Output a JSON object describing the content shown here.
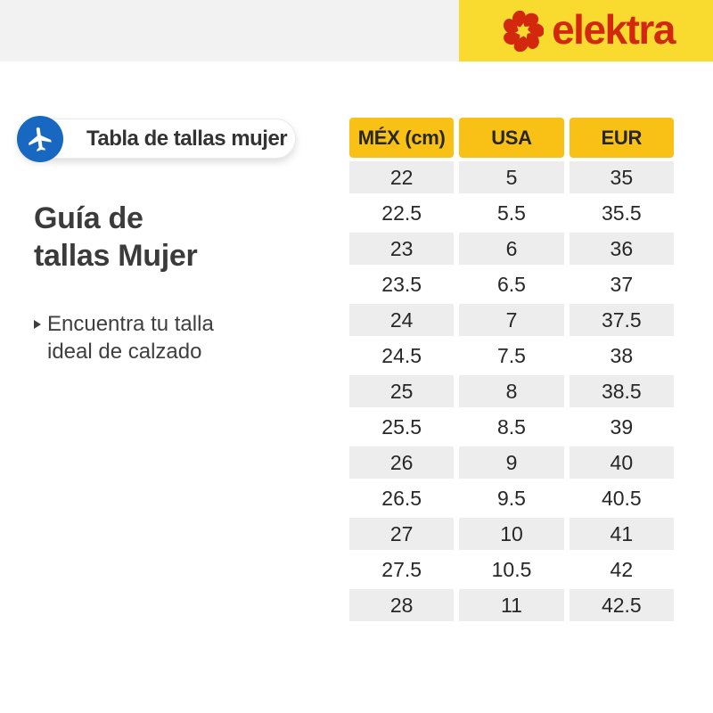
{
  "colors": {
    "bar-gray": "#F2F2F2",
    "bar-yellow": "#F8DB2E",
    "brand-red": "#D2290E",
    "circle-blue": "#1867C0",
    "header-yellow": "#F9C116",
    "row-gray": "#EDEDED",
    "title-gray": "#3B3B3B"
  },
  "header": {
    "brand": "elektra",
    "logo_icon": "elektra-pinwheel-icon"
  },
  "badge": {
    "label": "Tabla de tallas mujer",
    "icon": "airplane-icon"
  },
  "intro": {
    "title_lines": [
      "Guía de",
      "tallas Mujer"
    ],
    "bullet_lines": [
      "Encuentra tu talla",
      "ideal de calzado"
    ]
  },
  "table": {
    "columns": [
      "MÉX (cm)",
      "USA",
      "EUR"
    ],
    "rows": [
      [
        "22",
        "5",
        "35"
      ],
      [
        "22.5",
        "5.5",
        "35.5"
      ],
      [
        "23",
        "6",
        "36"
      ],
      [
        "23.5",
        "6.5",
        "37"
      ],
      [
        "24",
        "7",
        "37.5"
      ],
      [
        "24.5",
        "7.5",
        "38"
      ],
      [
        "25",
        "8",
        "38.5"
      ],
      [
        "25.5",
        "8.5",
        "39"
      ],
      [
        "26",
        "9",
        "40"
      ],
      [
        "26.5",
        "9.5",
        "40.5"
      ],
      [
        "27",
        "10",
        "41"
      ],
      [
        "27.5",
        "10.5",
        "42"
      ],
      [
        "28",
        "11",
        "42.5"
      ]
    ]
  }
}
